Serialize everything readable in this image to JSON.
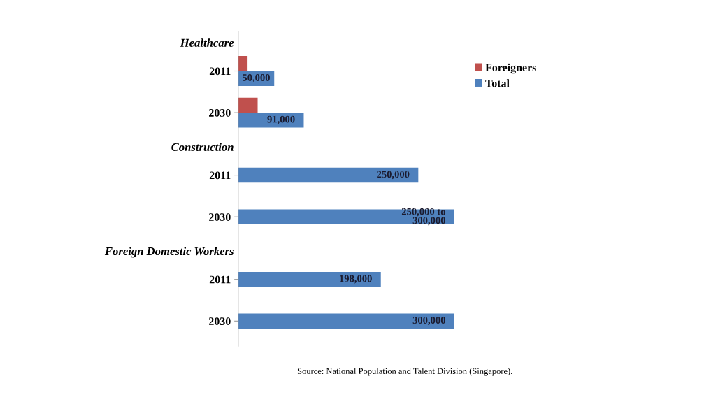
{
  "chart_data": {
    "type": "bar",
    "orientation": "horizontal",
    "categories": [
      "2011",
      "2030",
      "2011",
      "2030",
      "2011",
      "2030"
    ],
    "series": [
      {
        "name": "Foreigners",
        "color": "#c0504d",
        "values": [
          13000,
          27000,
          null,
          null,
          null,
          null
        ]
      },
      {
        "name": "Total",
        "color": "#4f81bd",
        "values": [
          50000,
          91000,
          250000,
          300000,
          198000,
          300000
        ],
        "value_labels": [
          "50,000",
          "91,000",
          "250,000",
          "250,000 to\n300,000",
          "198,000",
          "300,000"
        ]
      }
    ],
    "annotations": [
      "Healthcare",
      "Construction",
      "Foreign Domestic Workers",
      "Source: National Population and Talent Division (Singapore)."
    ],
    "legend": "right",
    "grid": false,
    "tick_labels": "y"
  }
}
